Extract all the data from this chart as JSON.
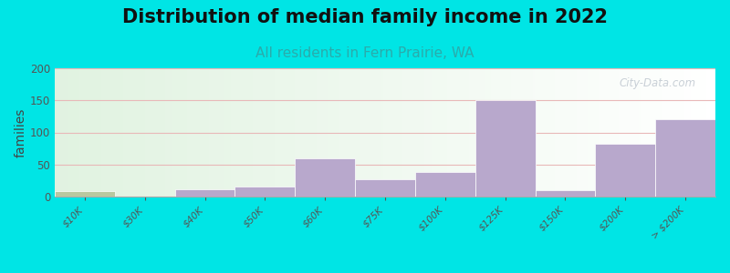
{
  "title": "Distribution of median family income in 2022",
  "subtitle": "All residents in Fern Prairie, WA",
  "ylabel": "families",
  "categories": [
    "$10K",
    "$30K",
    "$40K",
    "$50K",
    "$60K",
    "$75K",
    "$100K",
    "$125K",
    "$150K",
    "$200K",
    "> $200K"
  ],
  "values": [
    8,
    0,
    11,
    15,
    60,
    27,
    38,
    150,
    10,
    82,
    120
  ],
  "bar_color": "#b8a8cc",
  "bar_color_first": "#b8c8a0",
  "background_color": "#00e5e5",
  "title_color": "#111111",
  "subtitle_color": "#2aabab",
  "ylabel_color": "#444444",
  "tick_color": "#555555",
  "grid_color": "#e8b8b8",
  "watermark_text": "City-Data.com",
  "watermark_color": "#c0c8d0",
  "title_fontsize": 15,
  "subtitle_fontsize": 11,
  "ylabel_fontsize": 10,
  "tick_fontsize": 7.5,
  "ylim": [
    0,
    200
  ],
  "yticks": [
    0,
    50,
    100,
    150,
    200
  ]
}
